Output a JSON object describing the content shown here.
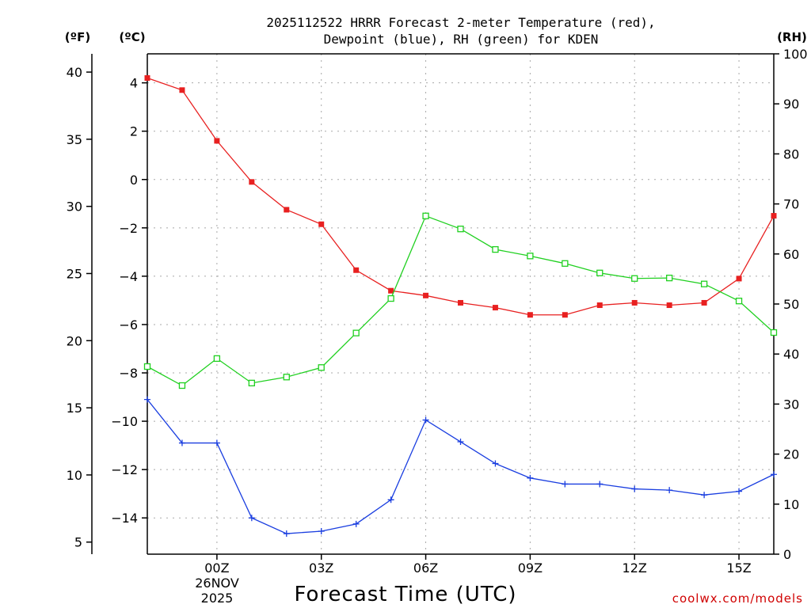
{
  "chart_data": {
    "type": "line",
    "title_line1": "2025112522 HRRR Forecast 2-meter Temperature (red),",
    "title_line2": "Dewpoint (blue), RH (green) for KDEN",
    "xlabel": "Forecast Time (UTC)",
    "credit": "coolwx.com/models",
    "unit_f": "(ºF)",
    "unit_c": "(ºC)",
    "unit_rh": "(RH)",
    "date_day": "26NOV",
    "date_year": "2025",
    "x_range": [
      -2,
      16
    ],
    "x_ticks": [
      {
        "x": 0,
        "label": "00Z"
      },
      {
        "x": 3,
        "label": "03Z"
      },
      {
        "x": 6,
        "label": "06Z"
      },
      {
        "x": 9,
        "label": "09Z"
      },
      {
        "x": 12,
        "label": "12Z"
      },
      {
        "x": 15,
        "label": "15Z"
      }
    ],
    "y_c_range": [
      -15.5,
      5.2
    ],
    "y_c_ticks": [
      4,
      2,
      0,
      -2,
      -4,
      -6,
      -8,
      -10,
      -12,
      -14
    ],
    "y_f_ticks": [
      40,
      35,
      30,
      25,
      20,
      15,
      10,
      5
    ],
    "y_rh_range": [
      0,
      100
    ],
    "y_rh_ticks": [
      100,
      90,
      80,
      70,
      60,
      50,
      40,
      30,
      20,
      10,
      0
    ],
    "x": [
      -2,
      -1,
      0,
      1,
      2,
      3,
      4,
      5,
      6,
      7,
      8,
      9,
      10,
      11,
      12,
      13,
      14,
      15,
      16
    ],
    "series": [
      {
        "name": "Temperature",
        "color": "#e82020",
        "marker": "filled-square",
        "values": [
          4.2,
          3.7,
          1.6,
          -0.1,
          -1.25,
          -1.85,
          -3.75,
          -4.6,
          -4.8,
          -5.1,
          -5.3,
          -5.6,
          -5.6,
          -5.2,
          -5.1,
          -5.2,
          -5.1,
          -4.1,
          -1.5
        ]
      },
      {
        "name": "Dewpoint",
        "color": "#1a3ee0",
        "marker": "plus",
        "values": [
          -9.1,
          -10.9,
          -10.9,
          -14.0,
          -14.65,
          -14.55,
          -14.25,
          -13.25,
          -9.95,
          -10.85,
          -11.75,
          -12.35,
          -12.6,
          -12.6,
          -12.8,
          -12.85,
          -13.05,
          -12.9,
          -12.2
        ]
      },
      {
        "name": "RH",
        "color": "#20d020",
        "marker": "open-square",
        "values": [
          37.5,
          33.7,
          39.1,
          34.2,
          35.4,
          37.3,
          44.2,
          51.1,
          67.6,
          65.0,
          60.9,
          59.6,
          58.1,
          56.2,
          55.1,
          55.2,
          54.0,
          50.6,
          44.3
        ]
      }
    ]
  }
}
